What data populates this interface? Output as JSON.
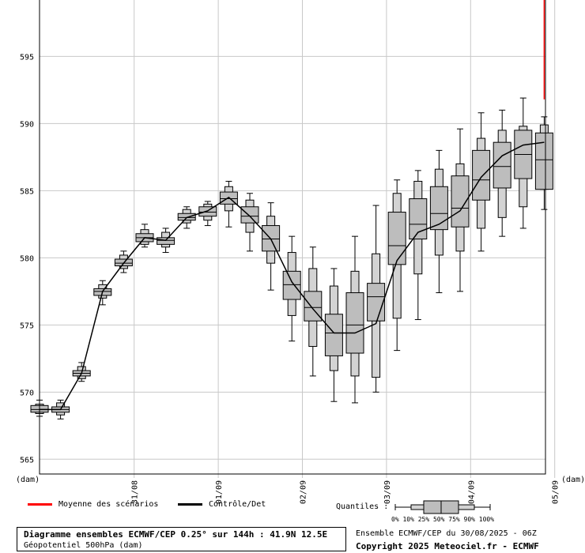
{
  "chart_data": {
    "type": "boxplot",
    "unit_label": "(dam)",
    "ylim": [
      563.9,
      599.2
    ],
    "yticks": [
      565,
      570,
      575,
      580,
      585,
      590,
      595
    ],
    "grid": true,
    "x_tick_labels": [
      {
        "label": "31/08",
        "step": 4.5
      },
      {
        "label": "01/09",
        "step": 8.5
      },
      {
        "label": "02/09",
        "step": 12.5
      },
      {
        "label": "03/09",
        "step": 16.5
      },
      {
        "label": "04/09",
        "step": 20.5
      },
      {
        "label": "05/09",
        "step": 24.5
      }
    ],
    "boxes": [
      {
        "step": 0,
        "min": 568.2,
        "p10": 568.4,
        "p25": 568.5,
        "median": 568.7,
        "p75": 569.0,
        "p90": 569.1,
        "max": 569.4
      },
      {
        "step": 1,
        "min": 568.0,
        "p10": 568.3,
        "p25": 568.5,
        "median": 568.7,
        "p75": 568.9,
        "p90": 569.2,
        "max": 569.4
      },
      {
        "step": 2,
        "min": 570.8,
        "p10": 571.0,
        "p25": 571.2,
        "median": 571.4,
        "p75": 571.6,
        "p90": 571.9,
        "max": 572.2
      },
      {
        "step": 3,
        "min": 576.5,
        "p10": 577.0,
        "p25": 577.2,
        "median": 577.5,
        "p75": 577.7,
        "p90": 578.0,
        "max": 578.3
      },
      {
        "step": 4,
        "min": 578.9,
        "p10": 579.2,
        "p25": 579.4,
        "median": 579.6,
        "p75": 579.9,
        "p90": 580.2,
        "max": 580.5
      },
      {
        "step": 5,
        "min": 580.8,
        "p10": 581.0,
        "p25": 581.2,
        "median": 581.5,
        "p75": 581.8,
        "p90": 582.1,
        "max": 582.5
      },
      {
        "step": 6,
        "min": 580.4,
        "p10": 580.8,
        "p25": 581.0,
        "median": 581.3,
        "p75": 581.5,
        "p90": 581.9,
        "max": 582.2
      },
      {
        "step": 7,
        "min": 582.2,
        "p10": 582.6,
        "p25": 582.8,
        "median": 583.0,
        "p75": 583.3,
        "p90": 583.6,
        "max": 583.8
      },
      {
        "step": 8,
        "min": 582.4,
        "p10": 582.8,
        "p25": 583.1,
        "median": 583.4,
        "p75": 583.8,
        "p90": 584.0,
        "max": 584.2
      },
      {
        "step": 9,
        "min": 582.3,
        "p10": 583.5,
        "p25": 584.0,
        "median": 584.4,
        "p75": 584.9,
        "p90": 585.3,
        "max": 585.7
      },
      {
        "step": 10,
        "min": 580.5,
        "p10": 581.9,
        "p25": 582.6,
        "median": 583.1,
        "p75": 583.8,
        "p90": 584.3,
        "max": 584.8
      },
      {
        "step": 11,
        "min": 577.6,
        "p10": 579.6,
        "p25": 580.5,
        "median": 581.4,
        "p75": 582.4,
        "p90": 583.1,
        "max": 584.1
      },
      {
        "step": 12,
        "min": 573.8,
        "p10": 575.7,
        "p25": 576.9,
        "median": 578.0,
        "p75": 579.0,
        "p90": 580.4,
        "max": 581.6
      },
      {
        "step": 13,
        "min": 571.2,
        "p10": 573.4,
        "p25": 575.3,
        "median": 576.3,
        "p75": 577.5,
        "p90": 579.2,
        "max": 580.8
      },
      {
        "step": 14,
        "min": 569.3,
        "p10": 571.6,
        "p25": 572.7,
        "median": 574.4,
        "p75": 575.8,
        "p90": 577.9,
        "max": 579.2
      },
      {
        "step": 15,
        "min": 569.2,
        "p10": 571.2,
        "p25": 572.9,
        "median": 575.0,
        "p75": 577.4,
        "p90": 579.0,
        "max": 581.6
      },
      {
        "step": 16,
        "min": 570.0,
        "p10": 571.1,
        "p25": 575.3,
        "median": 577.1,
        "p75": 578.1,
        "p90": 580.3,
        "max": 583.9
      },
      {
        "step": 17,
        "min": 573.1,
        "p10": 575.5,
        "p25": 579.5,
        "median": 580.9,
        "p75": 583.4,
        "p90": 584.8,
        "max": 585.8
      },
      {
        "step": 18,
        "min": 575.4,
        "p10": 578.8,
        "p25": 581.4,
        "median": 582.5,
        "p75": 584.4,
        "p90": 585.7,
        "max": 586.5
      },
      {
        "step": 19,
        "min": 577.4,
        "p10": 580.2,
        "p25": 582.1,
        "median": 583.3,
        "p75": 585.3,
        "p90": 586.6,
        "max": 588.0
      },
      {
        "step": 20,
        "min": 577.5,
        "p10": 580.5,
        "p25": 582.3,
        "median": 583.7,
        "p75": 586.1,
        "p90": 587.0,
        "max": 589.6
      },
      {
        "step": 21,
        "min": 580.5,
        "p10": 582.2,
        "p25": 584.3,
        "median": 585.8,
        "p75": 588.0,
        "p90": 588.9,
        "max": 590.8
      },
      {
        "step": 22,
        "min": 581.6,
        "p10": 583.0,
        "p25": 585.2,
        "median": 586.8,
        "p75": 588.6,
        "p90": 589.5,
        "max": 591.0
      },
      {
        "step": 23,
        "min": 582.2,
        "p10": 583.8,
        "p25": 585.9,
        "median": 587.7,
        "p75": 589.5,
        "p90": 589.8,
        "max": 591.9
      },
      {
        "step": 24,
        "min": 583.6,
        "p10": 585.1,
        "p25": 585.1,
        "median": 587.3,
        "p75": 589.3,
        "p90": 589.9,
        "max": 590.5
      }
    ],
    "control_series": {
      "name": "Contrôle/Det",
      "color": "#000000",
      "values": [
        568.7,
        568.7,
        571.4,
        577.5,
        579.6,
        581.5,
        581.3,
        583.0,
        583.5,
        584.5,
        583.1,
        581.4,
        578.2,
        576.2,
        574.4,
        574.4,
        575.1,
        579.8,
        581.9,
        582.5,
        583.5,
        586.0,
        587.6,
        588.4,
        588.6
      ]
    },
    "mean_series": {
      "name": "Moyenne des scénarios",
      "color": "#ff0000",
      "segment": {
        "step": 24,
        "from": 591.8,
        "to": 599.2
      }
    }
  },
  "legend": {
    "mean_label": "Moyenne des scénarios",
    "mean_color": "#ff0000",
    "control_label": "Contrôle/Det",
    "control_color": "#000000",
    "quantiles_label": "Quantiles :",
    "quantiles_scale": "0%  10% 25% 50% 75% 90% 100%"
  },
  "footer": {
    "title": "Diagramme ensembles ECMWF/CEP 0.25° sur 144h : 41.9N 12.5E",
    "subtitle": "Géopotentiel 500hPa (dam)",
    "run_info": "Ensemble ECMWF/CEP du 30/08/2025 - 06Z",
    "copyright": "Copyright 2025 Meteociel.fr - ECMWF"
  }
}
